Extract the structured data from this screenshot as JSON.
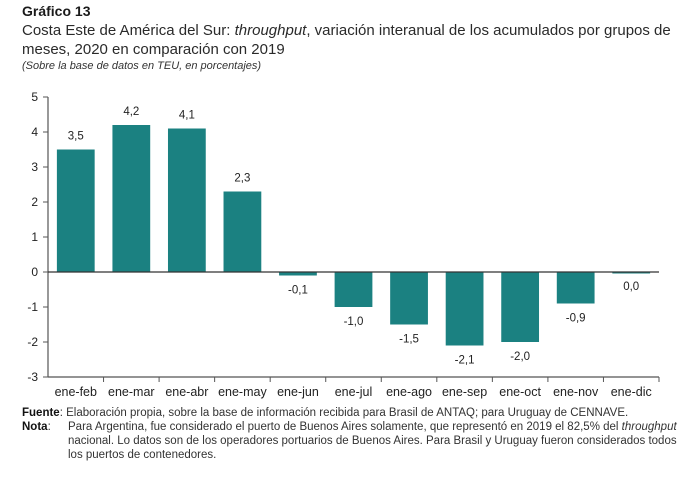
{
  "header": {
    "number": "Gráfico 13",
    "title_prefix": "Costa Este de América del Sur: ",
    "title_italic": "throughput",
    "title_suffix": ", variación interanual de los acumulados por grupos de meses, 2020 en comparación con 2019",
    "subtitle": "(Sobre la base de datos en TEU, en porcentajes)"
  },
  "chart_data": {
    "type": "bar",
    "title": "Costa Este de América del Sur: throughput, variación interanual de los acumulados por grupos de meses, 2020 en comparación con 2019",
    "subtitle": "(Sobre la base de datos en TEU, en porcentajes)",
    "xlabel": "",
    "ylabel": "",
    "categories": [
      "ene-feb",
      "ene-mar",
      "ene-abr",
      "ene-may",
      "ene-jun",
      "ene-jul",
      "ene-ago",
      "ene-sep",
      "ene-oct",
      "ene-nov",
      "ene-dic"
    ],
    "values": [
      3.5,
      4.2,
      4.1,
      2.3,
      -0.1,
      -1.0,
      -1.5,
      -2.1,
      -2.0,
      -0.9,
      0.0
    ],
    "value_labels": [
      "3,5",
      "4,2",
      "4,1",
      "2,3",
      "-0,1",
      "-1,0",
      "-1,5",
      "-2,1",
      "-2,0",
      "-0,9",
      "0,0"
    ],
    "ylim": [
      -3,
      5
    ],
    "yticks": [
      5,
      4,
      3,
      2,
      1,
      0,
      -1,
      -2,
      -3
    ],
    "ytick_labels": [
      "5",
      "4",
      "3",
      "2",
      "1",
      "0",
      "-1",
      "-2",
      "-3"
    ],
    "grid": false,
    "legend": "none",
    "bar_color": "#1b8181"
  },
  "footer": {
    "source_label": "Fuente",
    "source_text": ": Elaboración propia, sobre la base de información recibida para Brasil de ANTAQ; para Uruguay de CENNAVE.",
    "note_label": "Nota",
    "note_colon": ":",
    "note_text_1": "Para Argentina, fue considerado el puerto de Buenos Aires solamente, que representó en 2019 el 82,5% del ",
    "note_italic": "throughput",
    "note_text_2": " nacional. Lo datos son de los operadores portuarios de Buenos Aires. Para Brasil y Uruguay fueron considerados todos los puertos de contenedores."
  }
}
